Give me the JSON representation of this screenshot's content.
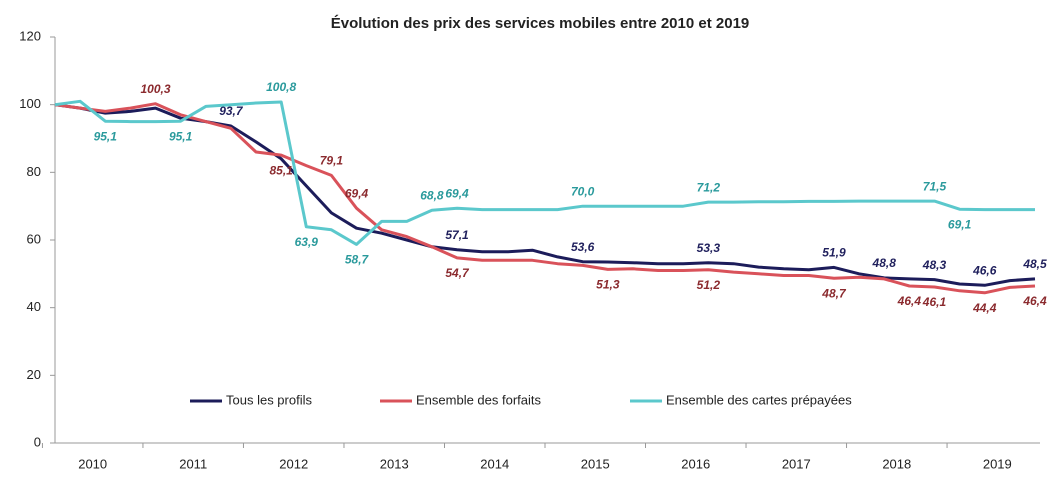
{
  "chart_data": {
    "type": "line",
    "title": "Évolution des prix des services mobiles entre 2010 et 2019",
    "categories": [
      "2010",
      null,
      null,
      null,
      "2011",
      null,
      null,
      null,
      "2012",
      null,
      null,
      null,
      "2013",
      null,
      null,
      null,
      "2014",
      null,
      null,
      null,
      "2015",
      null,
      null,
      null,
      "2016",
      null,
      null,
      null,
      "2017",
      null,
      null,
      null,
      "2018",
      null,
      null,
      null,
      "2019",
      null,
      null,
      null
    ],
    "series": [
      {
        "name": "Tous les profils",
        "color": "#1c1c5a",
        "values": [
          100,
          99,
          97.5,
          98,
          99,
          96,
          95,
          93.7,
          89,
          84,
          76,
          68,
          63.5,
          62,
          60,
          58,
          57.1,
          56.5,
          56.5,
          57,
          55,
          53.6,
          53.5,
          53.3,
          53,
          53,
          53.3,
          53,
          52,
          51.5,
          51.2,
          51.9,
          50,
          48.8,
          48.5,
          48.3,
          47,
          46.6,
          48,
          48.5
        ],
        "value_labels": [
          null,
          null,
          null,
          null,
          null,
          null,
          null,
          "93,7",
          null,
          null,
          null,
          null,
          null,
          null,
          null,
          null,
          "57,1",
          null,
          null,
          null,
          null,
          "53,6",
          null,
          null,
          null,
          null,
          "53,3",
          null,
          null,
          null,
          null,
          "51,9",
          null,
          "48,8",
          null,
          "48,3",
          null,
          "46,6",
          null,
          "48,5"
        ]
      },
      {
        "name": "Ensemble des forfaits",
        "color": "#d9525a",
        "values": [
          100,
          99,
          98,
          99,
          100.3,
          97,
          95,
          93,
          86,
          85.1,
          82,
          79.1,
          69.4,
          63,
          61,
          58,
          54.7,
          54,
          54,
          54,
          53,
          52.5,
          51.3,
          51.5,
          51,
          51,
          51.2,
          50.5,
          50,
          49.5,
          49.5,
          48.7,
          49,
          48.5,
          46.4,
          46.1,
          45,
          44.4,
          46,
          46.4
        ],
        "value_labels": [
          null,
          null,
          null,
          null,
          "100,3",
          null,
          null,
          null,
          null,
          "85,1",
          null,
          "79,1",
          "69,4",
          null,
          null,
          null,
          "54,7",
          null,
          null,
          null,
          null,
          null,
          "51,3",
          null,
          null,
          null,
          "51,2",
          null,
          null,
          null,
          null,
          "48,7",
          null,
          null,
          "46,4",
          "46,1",
          null,
          "44,4",
          null,
          "46,4"
        ]
      },
      {
        "name": "Ensemble des cartes prépayées",
        "color": "#5bc8cc",
        "values": [
          100,
          101,
          95.1,
          95,
          95,
          95.1,
          99.5,
          100,
          100.5,
          100.8,
          63.9,
          63,
          58.7,
          65.5,
          65.5,
          68.8,
          69.4,
          69,
          69,
          69,
          69,
          70.0,
          70,
          70,
          70,
          70,
          71.2,
          71.2,
          71.3,
          71.3,
          71.4,
          71.4,
          71.5,
          71.5,
          71.5,
          71.5,
          69.1,
          69,
          69,
          69
        ],
        "value_labels": [
          null,
          null,
          "95,1",
          null,
          null,
          "95,1",
          null,
          null,
          null,
          "100,8",
          "63,9",
          null,
          "58,7",
          null,
          null,
          "68,8",
          "69,4",
          null,
          null,
          null,
          null,
          "70,0",
          null,
          null,
          null,
          null,
          "71,2",
          null,
          null,
          null,
          null,
          null,
          null,
          null,
          null,
          "71,5",
          "69,1",
          null,
          null,
          null
        ]
      }
    ],
    "ylim": [
      0,
      120
    ],
    "yticks": [
      0,
      20,
      40,
      60,
      80,
      100,
      120
    ],
    "grid": false,
    "legend": "bottom"
  }
}
